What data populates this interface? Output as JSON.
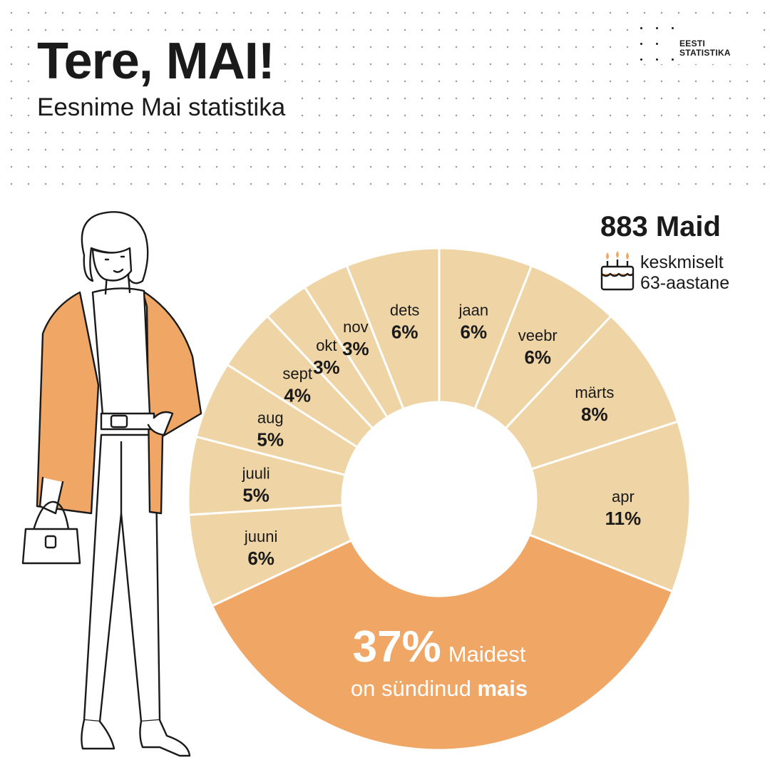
{
  "header": {
    "title": "Tere, MAI!",
    "subtitle": "Eesnime Mai statistika",
    "logo_line1": "EESTI",
    "logo_line2": "STATISTIKA"
  },
  "summary": {
    "count_label": "883 Maid",
    "avg_line1": "keskmiselt",
    "avg_line2": "63-aastane"
  },
  "chart_data": {
    "type": "pie",
    "categories": [
      "jaan",
      "veebr",
      "märts",
      "apr",
      "mai",
      "juuni",
      "juuli",
      "aug",
      "sept",
      "okt",
      "nov",
      "dets"
    ],
    "values": [
      6,
      6,
      8,
      11,
      37,
      6,
      5,
      5,
      4,
      3,
      3,
      6
    ],
    "labels": [
      "6%",
      "6%",
      "8%",
      "11%",
      "37%",
      "6%",
      "5%",
      "5%",
      "4%",
      "3%",
      "3%",
      "6%"
    ],
    "highlight_index": 4,
    "highlight_text": {
      "percent": "37%",
      "rest_line1": "Maidest",
      "line2_pre": "on sündinud",
      "line2_bold": "mais"
    },
    "colors": {
      "segment": "#efd4a5",
      "highlight": "#f0a766",
      "separator": "#ffffff"
    }
  },
  "icons": {
    "cake": "cake-icon",
    "logo": "eesti-statistika-logo"
  }
}
